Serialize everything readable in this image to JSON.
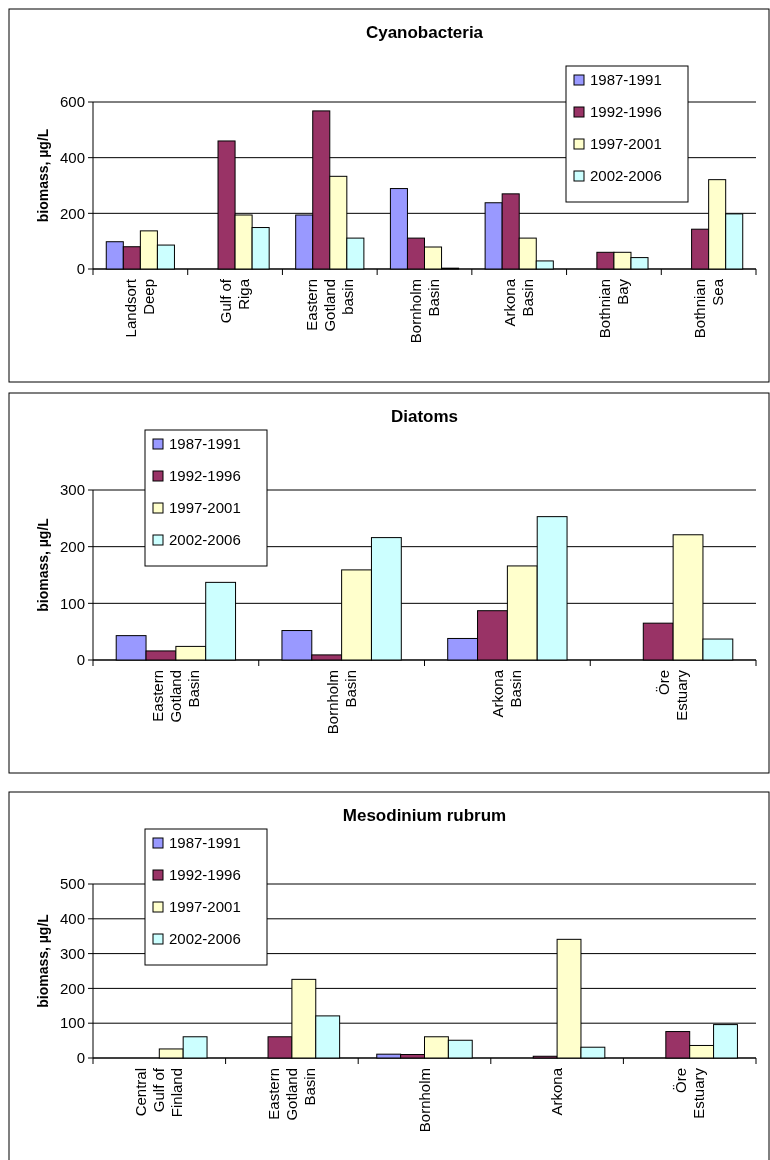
{
  "chart_data": [
    {
      "type": "bar",
      "title": "Cyanobacteria",
      "ylabel": "biomass, µg/L",
      "categories": [
        "Landsort Deep",
        "Gulf of Riga",
        "Eastern Gotland basin",
        "Bornholm Basin",
        "Arkona Basin",
        "Bothnian Bay",
        "Bothnian Sea"
      ],
      "series": [
        {
          "name": "1987-1991",
          "color": "#9999ff",
          "values": [
            98,
            null,
            194,
            289,
            238,
            null,
            null
          ]
        },
        {
          "name": "1992-1996",
          "color": "#993366",
          "values": [
            80,
            460,
            568,
            111,
            270,
            60,
            143
          ]
        },
        {
          "name": "1997-2001",
          "color": "#ffffcc",
          "values": [
            137,
            194,
            333,
            79,
            111,
            60,
            321
          ]
        },
        {
          "name": "2002-2006",
          "color": "#ccffff",
          "values": [
            86,
            149,
            111,
            3,
            29,
            41,
            198
          ]
        }
      ],
      "ylim": [
        0,
        600
      ],
      "yticks": [
        0,
        200,
        400,
        600
      ],
      "grid": "y",
      "legend": "top right"
    },
    {
      "type": "bar",
      "title": "Diatoms",
      "ylabel": "biomass, µg/L",
      "categories": [
        "Eastern Gotland Basin",
        "Bornholm Basin",
        "Arkona Basin",
        "Öre Estuary"
      ],
      "series": [
        {
          "name": "1987-1991",
          "color": "#9999ff",
          "values": [
            43,
            52,
            38,
            null
          ]
        },
        {
          "name": "1992-1996",
          "color": "#993366",
          "values": [
            16,
            9,
            87,
            65
          ]
        },
        {
          "name": "1997-2001",
          "color": "#ffffcc",
          "values": [
            24,
            159,
            166,
            221
          ]
        },
        {
          "name": "2002-2006",
          "color": "#ccffff",
          "values": [
            137,
            216,
            253,
            37
          ]
        }
      ],
      "ylim": [
        0,
        300
      ],
      "yticks": [
        0,
        100,
        200,
        300
      ],
      "grid": "y",
      "legend": "top left"
    },
    {
      "type": "bar",
      "title": "Mesodinium rubrum",
      "ylabel": "biomass, µg/L",
      "categories": [
        "Central Gulf of Finland",
        "Eastern Gotland Basin",
        "Bornholm",
        "Arkona",
        "Öre Estuary"
      ],
      "series": [
        {
          "name": "1987-1991",
          "color": "#9999ff",
          "values": [
            null,
            null,
            11,
            null,
            null
          ]
        },
        {
          "name": "1992-1996",
          "color": "#993366",
          "values": [
            null,
            61,
            10,
            5,
            76
          ]
        },
        {
          "name": "1997-2001",
          "color": "#ffffcc",
          "values": [
            26,
            226,
            61,
            341,
            36
          ]
        },
        {
          "name": "2002-2006",
          "color": "#ccffff",
          "values": [
            61,
            121,
            51,
            31,
            96
          ]
        }
      ],
      "ylim": [
        0,
        500
      ],
      "yticks": [
        0,
        100,
        200,
        300,
        400,
        500
      ],
      "grid": "y",
      "legend": "top left"
    }
  ]
}
